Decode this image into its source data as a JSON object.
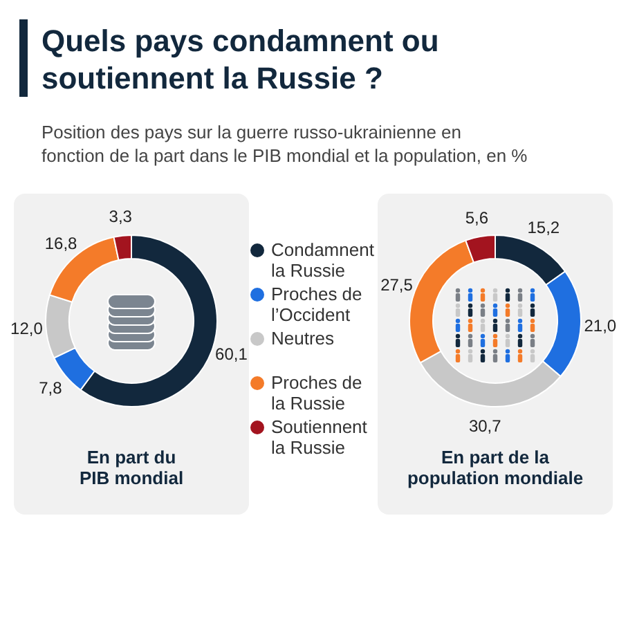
{
  "chart_data": [
    {
      "type": "donut",
      "title": "Quels pays condamnent ou soutiennent la Russie ?",
      "subtitle": "Position des pays sur la guerre russo-ukrainienne en fonction de la part dans le PIB mondial et la population, en %",
      "xlabel": "En part du PIB mondial",
      "legend": "right",
      "categories": [
        "Condamnent la Russie",
        "Proches de l’Occident",
        "Neutres",
        "Proches de la Russie",
        "Soutiennent la Russie"
      ],
      "values": [
        60.1,
        7.8,
        12.0,
        16.8,
        3.3
      ],
      "value_labels": [
        "60,1",
        "7,8",
        "12,0",
        "16,8",
        "3,3"
      ],
      "colors": [
        "#12283d",
        "#1f6fe0",
        "#c8c8c8",
        "#f47b29",
        "#a3141f"
      ]
    },
    {
      "type": "donut",
      "xlabel": "En part de la population mondiale",
      "categories": [
        null,
        null,
        null,
        null,
        null
      ],
      "values": [
        15.2,
        21.0,
        30.7,
        27.5,
        5.6
      ],
      "value_labels": [
        "15,2",
        "21,0",
        "30,7",
        "27,5",
        "5,6"
      ],
      "colors": [
        "#12283d",
        "#1f6fe0",
        "#c8c8c8",
        "#f47b29",
        "#a3141f"
      ]
    }
  ]
}
